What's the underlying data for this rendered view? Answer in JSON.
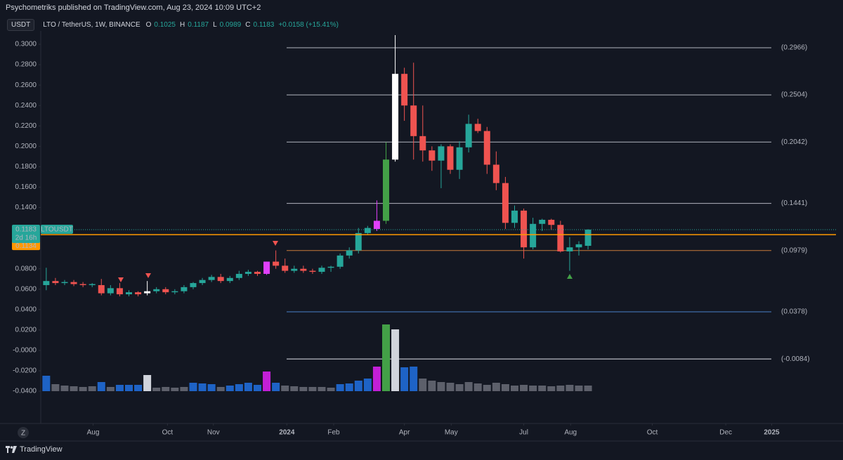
{
  "header": {
    "publisher": "Psychometriks published on TradingView.com, Aug 23, 2024 10:09 UTC+2",
    "unit": "USDT",
    "symbol": "LTO / TetherUS, 1W, BINANCE",
    "ohlc": [
      {
        "key": "O",
        "value": "0.1025"
      },
      {
        "key": "H",
        "value": "0.1187"
      },
      {
        "key": "L",
        "value": "0.0989"
      },
      {
        "key": "C",
        "value": "0.1183"
      }
    ],
    "change": "+0.0158 (+15.41%)",
    "timezone": "Z",
    "brand": "TradingView"
  },
  "chart_data": {
    "type": "candlestick",
    "open": [
      0.064,
      0.068,
      0.066,
      0.067,
      0.065,
      0.064,
      0.064,
      0.056,
      0.061,
      0.055,
      0.057,
      0.056,
      0.058,
      0.06,
      0.057,
      0.058,
      0.062,
      0.066,
      0.069,
      0.072,
      0.068,
      0.071,
      0.075,
      0.077,
      0.075,
      0.087,
      0.083,
      0.078,
      0.08,
      0.078,
      0.077,
      0.081,
      0.082,
      0.093,
      0.098,
      0.115,
      0.119,
      0.127,
      0.187,
      0.271,
      0.24,
      0.21,
      0.196,
      0.186,
      0.2,
      0.177,
      0.199,
      0.222,
      0.215,
      0.182,
      0.164,
      0.125,
      0.137,
      0.101,
      0.124,
      0.128,
      0.123,
      0.097,
      0.101,
      0.1025
    ],
    "high": [
      0.081,
      0.071,
      0.069,
      0.069,
      0.067,
      0.066,
      0.07,
      0.064,
      0.066,
      0.059,
      0.058,
      0.068,
      0.062,
      0.062,
      0.06,
      0.064,
      0.067,
      0.071,
      0.074,
      0.075,
      0.073,
      0.078,
      0.079,
      0.078,
      0.087,
      0.098,
      0.09,
      0.083,
      0.083,
      0.08,
      0.083,
      0.083,
      0.095,
      0.101,
      0.12,
      0.122,
      0.147,
      0.204,
      0.309,
      0.277,
      0.282,
      0.24,
      0.2,
      0.202,
      0.202,
      0.205,
      0.231,
      0.227,
      0.219,
      0.195,
      0.17,
      0.142,
      0.139,
      0.13,
      0.129,
      0.129,
      0.127,
      0.111,
      0.107,
      0.1187
    ],
    "low": [
      0.059,
      0.064,
      0.064,
      0.063,
      0.062,
      0.062,
      0.054,
      0.054,
      0.053,
      0.053,
      0.053,
      0.054,
      0.056,
      0.055,
      0.055,
      0.056,
      0.06,
      0.064,
      0.067,
      0.066,
      0.066,
      0.069,
      0.073,
      0.073,
      0.074,
      0.08,
      0.076,
      0.076,
      0.076,
      0.075,
      0.075,
      0.077,
      0.08,
      0.09,
      0.095,
      0.113,
      0.117,
      0.124,
      0.185,
      0.225,
      0.187,
      0.185,
      0.176,
      0.159,
      0.173,
      0.168,
      0.194,
      0.213,
      0.173,
      0.157,
      0.119,
      0.12,
      0.09,
      0.099,
      0.117,
      0.118,
      0.096,
      0.078,
      0.093,
      0.0989
    ],
    "close": [
      0.068,
      0.066,
      0.067,
      0.065,
      0.064,
      0.065,
      0.056,
      0.061,
      0.055,
      0.057,
      0.055,
      0.058,
      0.06,
      0.057,
      0.058,
      0.062,
      0.066,
      0.069,
      0.072,
      0.068,
      0.071,
      0.075,
      0.077,
      0.075,
      0.087,
      0.083,
      0.078,
      0.08,
      0.078,
      0.077,
      0.081,
      0.082,
      0.093,
      0.098,
      0.115,
      0.12,
      0.127,
      0.187,
      0.271,
      0.24,
      0.21,
      0.196,
      0.186,
      0.2,
      0.177,
      0.199,
      0.222,
      0.215,
      0.182,
      0.164,
      0.125,
      0.137,
      0.101,
      0.124,
      0.128,
      0.123,
      0.097,
      0.101,
      0.104,
      0.1183
    ],
    "colors": [
      "#26a69a",
      "#ef5350",
      "#26a69a",
      "#ef5350",
      "#ef5350",
      "#26a69a",
      "#ef5350",
      "#26a69a",
      "#ef5350",
      "#26a69a",
      "#ef5350",
      "#ffffff",
      "#26a69a",
      "#ef5350",
      "#26a69a",
      "#26a69a",
      "#26a69a",
      "#26a69a",
      "#26a69a",
      "#ef5350",
      "#26a69a",
      "#26a69a",
      "#26a69a",
      "#ef5350",
      "#e040fb",
      "#ef5350",
      "#ef5350",
      "#26a69a",
      "#ef5350",
      "#ef5350",
      "#26a69a",
      "#26a69a",
      "#26a69a",
      "#26a69a",
      "#26a69a",
      "#26a69a",
      "#e040fb",
      "#43a047",
      "#ffffff",
      "#ef5350",
      "#ef5350",
      "#ef5350",
      "#ef5350",
      "#26a69a",
      "#ef5350",
      "#26a69a",
      "#26a69a",
      "#ef5350",
      "#ef5350",
      "#ef5350",
      "#ef5350",
      "#26a69a",
      "#ef5350",
      "#26a69a",
      "#26a69a",
      "#ef5350",
      "#ef5350",
      "#26a69a",
      "#26a69a",
      "#26a69a"
    ],
    "volume": [
      22,
      10,
      8,
      7,
      6,
      7,
      13,
      6,
      9,
      9,
      9,
      23,
      5,
      6,
      5,
      6,
      12,
      11,
      10,
      6,
      8,
      10,
      12,
      9,
      28,
      12,
      8,
      7,
      6,
      6,
      6,
      5,
      10,
      11,
      15,
      18,
      35,
      95,
      88,
      34,
      35,
      18,
      15,
      13,
      12,
      10,
      13,
      11,
      9,
      12,
      10,
      8,
      9,
      8,
      8,
      7,
      8,
      9,
      8,
      8
    ],
    "volume_colors": [
      "#1e63c6",
      "#5d606b",
      "#5d606b",
      "#5d606b",
      "#5d606b",
      "#5d606b",
      "#1e63c6",
      "#5d606b",
      "#1e63c6",
      "#1e63c6",
      "#1e63c6",
      "#d1d4dc",
      "#5d606b",
      "#5d606b",
      "#5d606b",
      "#5d606b",
      "#1e63c6",
      "#1e63c6",
      "#1e63c6",
      "#5d606b",
      "#1e63c6",
      "#1e63c6",
      "#1e63c6",
      "#1e63c6",
      "#c21fd6",
      "#1e63c6",
      "#5d606b",
      "#5d606b",
      "#5d606b",
      "#5d606b",
      "#5d606b",
      "#5d606b",
      "#1e63c6",
      "#1e63c6",
      "#1e63c6",
      "#1e63c6",
      "#c21fd6",
      "#43a047",
      "#d1d4dc",
      "#1e63c6",
      "#1e63c6",
      "#5d606b",
      "#5d606b",
      "#5d606b",
      "#5d606b",
      "#5d606b",
      "#5d606b",
      "#5d606b",
      "#5d606b",
      "#5d606b",
      "#5d606b",
      "#5d606b",
      "#5d606b",
      "#5d606b",
      "#5d606b",
      "#5d606b",
      "#5d606b",
      "#5d606b",
      "#5d606b",
      "#5d606b"
    ],
    "xlim": [
      -0.6,
      86
    ],
    "xticks": [
      {
        "value": 5.1,
        "label": "Aug"
      },
      {
        "value": 13.2,
        "label": "Oct"
      },
      {
        "value": 18.2,
        "label": "Nov"
      },
      {
        "value": 26.2,
        "label": "2024"
      },
      {
        "value": 31.3,
        "label": "Feb"
      },
      {
        "value": 39.0,
        "label": "Apr"
      },
      {
        "value": 44.1,
        "label": "May"
      },
      {
        "value": 52.0,
        "label": "Jul"
      },
      {
        "value": 57.1,
        "label": "Aug"
      },
      {
        "value": 66.0,
        "label": "Oct"
      },
      {
        "value": 74.0,
        "label": "Dec"
      },
      {
        "value": 79.0,
        "label": "2025"
      }
    ],
    "ylim": [
      -0.0716,
      0.3131
    ],
    "yticks": [
      {
        "value": 0.3,
        "label": "0.3000"
      },
      {
        "value": 0.28,
        "label": "0.2800"
      },
      {
        "value": 0.26,
        "label": "0.2600"
      },
      {
        "value": 0.24,
        "label": "0.2400"
      },
      {
        "value": 0.22,
        "label": "0.2200"
      },
      {
        "value": 0.2,
        "label": "0.2000"
      },
      {
        "value": 0.18,
        "label": "0.1800"
      },
      {
        "value": 0.16,
        "label": "0.1600"
      },
      {
        "value": 0.14,
        "label": "0.1400"
      },
      {
        "value": 0.08,
        "label": "0.0800"
      },
      {
        "value": 0.06,
        "label": "0.0600"
      },
      {
        "value": 0.04,
        "label": "0.0400"
      },
      {
        "value": 0.02,
        "label": "0.0200"
      },
      {
        "value": 0,
        "label": "-0.0000"
      },
      {
        "value": -0.02,
        "label": "-0.0200"
      },
      {
        "value": -0.04,
        "label": "-0.0400"
      }
    ],
    "grid": false,
    "levels": [
      {
        "value": 0.2966,
        "label": "(0.2966)",
        "color": "#b2b5be"
      },
      {
        "value": 0.2504,
        "label": "(0.2504)",
        "color": "#b2b5be"
      },
      {
        "value": 0.2042,
        "label": "(0.2042)",
        "color": "#b2b5be"
      },
      {
        "value": 0.1441,
        "label": "(0.1441)",
        "color": "#b2b5be"
      },
      {
        "value": 0.0979,
        "label": "(0.0979)",
        "color": "#c8783a"
      },
      {
        "value": 0.0378,
        "label": "(0.0378)",
        "color": "#4a7fc8"
      },
      {
        "value": -0.0084,
        "label": "(-0.0084)",
        "color": "#e0e3eb"
      }
    ],
    "last_price": {
      "value": 0.1183,
      "label": "0.1183",
      "symbol": "LTOUSDT",
      "countdown": "2d 16h",
      "color": "#26a69a"
    },
    "price_line": {
      "value": 0.1134,
      "label": "0.1134",
      "color": "#ff9800"
    }
  }
}
